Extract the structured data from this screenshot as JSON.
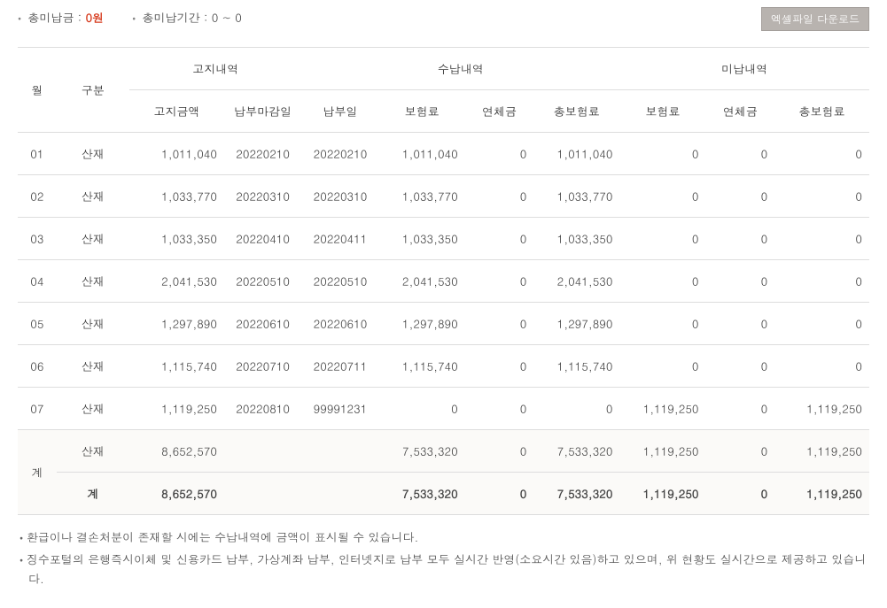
{
  "summary": {
    "unpaid_amount_label": "총미납금 :",
    "unpaid_amount_value": "0원",
    "unpaid_period_label": "총미납기간 :",
    "unpaid_period_value": "0 ~ 0"
  },
  "buttons": {
    "excel": "엑셀파일 다운로드"
  },
  "headers": {
    "month": "월",
    "type": "구분",
    "bill_group": "고지내역",
    "bill_amount": "고지금액",
    "bill_due": "납부마감일",
    "pay_group": "수납내역",
    "pay_date": "납부일",
    "pay_premium": "보험료",
    "pay_late": "연체금",
    "pay_total": "총보험료",
    "unpaid_group": "미납내역",
    "unpaid_premium": "보험료",
    "unpaid_late": "연체금",
    "unpaid_total": "총보험료"
  },
  "rows": [
    {
      "month": "01",
      "type": "산재",
      "bill_amount": "1,011,040",
      "bill_due": "20220210",
      "pay_date": "20220210",
      "pay_premium": "1,011,040",
      "pay_late": "0",
      "pay_total": "1,011,040",
      "u_prem": "0",
      "u_late": "0",
      "u_total": "0"
    },
    {
      "month": "02",
      "type": "산재",
      "bill_amount": "1,033,770",
      "bill_due": "20220310",
      "pay_date": "20220310",
      "pay_premium": "1,033,770",
      "pay_late": "0",
      "pay_total": "1,033,770",
      "u_prem": "0",
      "u_late": "0",
      "u_total": "0"
    },
    {
      "month": "03",
      "type": "산재",
      "bill_amount": "1,033,350",
      "bill_due": "20220410",
      "pay_date": "20220411",
      "pay_premium": "1,033,350",
      "pay_late": "0",
      "pay_total": "1,033,350",
      "u_prem": "0",
      "u_late": "0",
      "u_total": "0"
    },
    {
      "month": "04",
      "type": "산재",
      "bill_amount": "2,041,530",
      "bill_due": "20220510",
      "pay_date": "20220510",
      "pay_premium": "2,041,530",
      "pay_late": "0",
      "pay_total": "2,041,530",
      "u_prem": "0",
      "u_late": "0",
      "u_total": "0"
    },
    {
      "month": "05",
      "type": "산재",
      "bill_amount": "1,297,890",
      "bill_due": "20220610",
      "pay_date": "20220610",
      "pay_premium": "1,297,890",
      "pay_late": "0",
      "pay_total": "1,297,890",
      "u_prem": "0",
      "u_late": "0",
      "u_total": "0"
    },
    {
      "month": "06",
      "type": "산재",
      "bill_amount": "1,115,740",
      "bill_due": "20220710",
      "pay_date": "20220711",
      "pay_premium": "1,115,740",
      "pay_late": "0",
      "pay_total": "1,115,740",
      "u_prem": "0",
      "u_late": "0",
      "u_total": "0"
    },
    {
      "month": "07",
      "type": "산재",
      "bill_amount": "1,119,250",
      "bill_due": "20220810",
      "pay_date": "99991231",
      "pay_premium": "0",
      "pay_late": "0",
      "pay_total": "0",
      "u_prem": "1,119,250",
      "u_late": "0",
      "u_total": "1,119,250"
    }
  ],
  "subtotal": {
    "month": "계",
    "type": "산재",
    "bill_amount": "8,652,570",
    "pay_premium": "7,533,320",
    "pay_late": "0",
    "pay_total": "7,533,320",
    "u_prem": "1,119,250",
    "u_late": "0",
    "u_total": "1,119,250"
  },
  "total": {
    "type": "계",
    "bill_amount": "8,652,570",
    "pay_premium": "7,533,320",
    "pay_late": "0",
    "pay_total": "7,533,320",
    "u_prem": "1,119,250",
    "u_late": "0",
    "u_total": "1,119,250"
  },
  "notes": {
    "n1": "환급이나 결손처분이 존재할 시에는 수납내역에 금액이 표시될 수 있습니다.",
    "n2": "징수포털의 은행즉시이체 및 신용카드 납부, 가상계좌 납부, 인터넷지로 납부 모두 실시간 반영(소요시간 있음)하고 있으며, 위 현황도 실시간으로 제공하고 있습니다."
  }
}
